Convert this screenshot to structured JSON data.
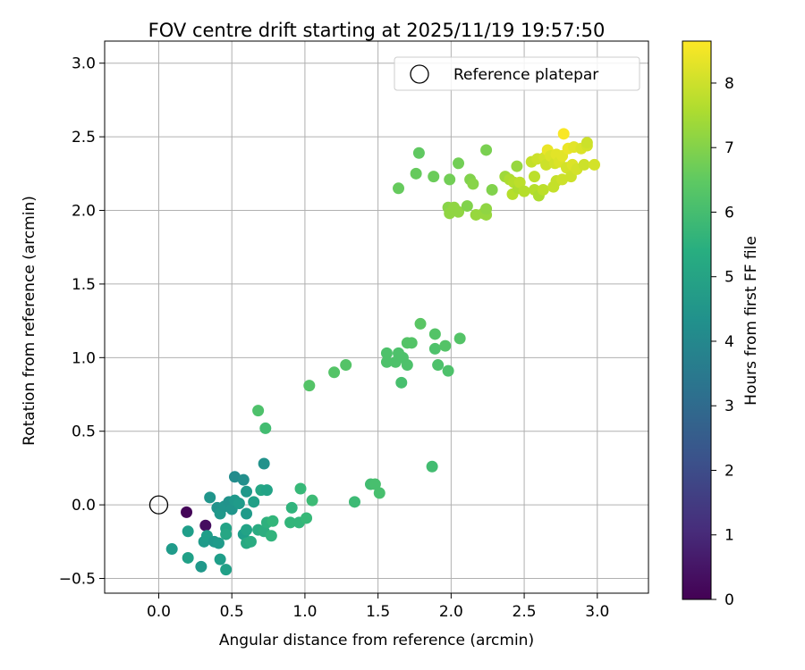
{
  "chart_data": {
    "type": "scatter",
    "title": "FOV centre drift starting at 2025/11/19 19:57:50",
    "xlabel": "Angular distance from reference (arcmin)",
    "ylabel": "Rotation from reference (arcmin)",
    "xlim": [
      -0.37,
      3.35
    ],
    "ylim": [
      -0.6,
      3.15
    ],
    "xticks": [
      "0.0",
      "0.5",
      "1.0",
      "1.5",
      "2.0",
      "2.5",
      "3.0"
    ],
    "yticks": [
      "−0.5",
      "0.0",
      "0.5",
      "1.0",
      "1.5",
      "2.0",
      "2.5",
      "3.0"
    ],
    "grid": true,
    "legend": {
      "location": "top-right",
      "entries": [
        "Reference platepar"
      ]
    },
    "reference_point": {
      "x": 0.0,
      "y": 0.0,
      "label": "Reference platepar"
    },
    "colorbar": {
      "label": "Hours from first FF file",
      "colormap": "viridis",
      "range": [
        0,
        8.65
      ],
      "ticks": [
        "0",
        "1",
        "2",
        "3",
        "4",
        "5",
        "6",
        "7",
        "8"
      ]
    },
    "points": [
      {
        "x": 0.19,
        "y": -0.05,
        "h": 0.1
      },
      {
        "x": 0.32,
        "y": -0.14,
        "h": 0.3
      },
      {
        "x": 0.09,
        "y": -0.3,
        "h": 4.7
      },
      {
        "x": 0.2,
        "y": -0.18,
        "h": 4.8
      },
      {
        "x": 0.2,
        "y": -0.36,
        "h": 4.9
      },
      {
        "x": 0.29,
        "y": -0.42,
        "h": 4.6
      },
      {
        "x": 0.31,
        "y": -0.25,
        "h": 4.7
      },
      {
        "x": 0.33,
        "y": -0.21,
        "h": 4.8
      },
      {
        "x": 0.35,
        "y": 0.05,
        "h": 4.5
      },
      {
        "x": 0.38,
        "y": -0.25,
        "h": 4.6
      },
      {
        "x": 0.4,
        "y": -0.02,
        "h": 4.4
      },
      {
        "x": 0.41,
        "y": -0.26,
        "h": 4.7
      },
      {
        "x": 0.42,
        "y": -0.37,
        "h": 4.8
      },
      {
        "x": 0.42,
        "y": -0.06,
        "h": 4.6
      },
      {
        "x": 0.45,
        "y": -0.01,
        "h": 4.5
      },
      {
        "x": 0.46,
        "y": -0.16,
        "h": 5.0
      },
      {
        "x": 0.46,
        "y": -0.2,
        "h": 5.1
      },
      {
        "x": 0.46,
        "y": -0.44,
        "h": 4.9
      },
      {
        "x": 0.48,
        "y": 0.02,
        "h": 4.4
      },
      {
        "x": 0.5,
        "y": -0.03,
        "h": 4.5
      },
      {
        "x": 0.52,
        "y": 0.19,
        "h": 4.2
      },
      {
        "x": 0.52,
        "y": 0.03,
        "h": 4.6
      },
      {
        "x": 0.55,
        "y": 0.01,
        "h": 4.7
      },
      {
        "x": 0.58,
        "y": 0.17,
        "h": 4.3
      },
      {
        "x": 0.58,
        "y": -0.2,
        "h": 4.8
      },
      {
        "x": 0.6,
        "y": 0.09,
        "h": 4.6
      },
      {
        "x": 0.6,
        "y": -0.06,
        "h": 4.7
      },
      {
        "x": 0.6,
        "y": -0.17,
        "h": 5.0
      },
      {
        "x": 0.6,
        "y": -0.26,
        "h": 5.2
      },
      {
        "x": 0.63,
        "y": -0.25,
        "h": 5.3
      },
      {
        "x": 0.65,
        "y": 0.02,
        "h": 4.9
      },
      {
        "x": 0.68,
        "y": -0.17,
        "h": 5.3
      },
      {
        "x": 0.68,
        "y": 0.64,
        "h": 6.2
      },
      {
        "x": 0.7,
        "y": 0.1,
        "h": 5.1
      },
      {
        "x": 0.72,
        "y": 0.28,
        "h": 4.4
      },
      {
        "x": 0.72,
        "y": -0.18,
        "h": 5.4
      },
      {
        "x": 0.73,
        "y": 0.52,
        "h": 6.0
      },
      {
        "x": 0.74,
        "y": 0.1,
        "h": 5.0
      },
      {
        "x": 0.74,
        "y": -0.12,
        "h": 5.5
      },
      {
        "x": 0.77,
        "y": -0.21,
        "h": 5.6
      },
      {
        "x": 0.78,
        "y": -0.11,
        "h": 5.7
      },
      {
        "x": 0.9,
        "y": -0.12,
        "h": 5.7
      },
      {
        "x": 0.91,
        "y": -0.02,
        "h": 5.6
      },
      {
        "x": 0.96,
        "y": -0.12,
        "h": 5.7
      },
      {
        "x": 0.97,
        "y": 0.11,
        "h": 5.8
      },
      {
        "x": 1.01,
        "y": -0.09,
        "h": 5.8
      },
      {
        "x": 1.05,
        "y": 0.03,
        "h": 5.9
      },
      {
        "x": 1.03,
        "y": 0.81,
        "h": 6.3
      },
      {
        "x": 1.2,
        "y": 0.9,
        "h": 6.3
      },
      {
        "x": 1.28,
        "y": 0.95,
        "h": 6.3
      },
      {
        "x": 1.34,
        "y": 0.02,
        "h": 5.9
      },
      {
        "x": 1.45,
        "y": 0.14,
        "h": 6.0
      },
      {
        "x": 1.48,
        "y": 0.14,
        "h": 6.1
      },
      {
        "x": 1.51,
        "y": 0.08,
        "h": 6.1
      },
      {
        "x": 1.56,
        "y": 1.03,
        "h": 6.2
      },
      {
        "x": 1.56,
        "y": 0.97,
        "h": 6.2
      },
      {
        "x": 1.62,
        "y": 0.97,
        "h": 6.2
      },
      {
        "x": 1.64,
        "y": 1.03,
        "h": 6.2
      },
      {
        "x": 1.66,
        "y": 0.83,
        "h": 6.1
      },
      {
        "x": 1.67,
        "y": 1.0,
        "h": 6.2
      },
      {
        "x": 1.7,
        "y": 0.95,
        "h": 6.2
      },
      {
        "x": 1.7,
        "y": 1.1,
        "h": 6.3
      },
      {
        "x": 1.73,
        "y": 1.1,
        "h": 6.3
      },
      {
        "x": 1.79,
        "y": 1.23,
        "h": 6.4
      },
      {
        "x": 1.87,
        "y": 0.26,
        "h": 6.0
      },
      {
        "x": 1.89,
        "y": 1.16,
        "h": 6.3
      },
      {
        "x": 1.89,
        "y": 1.06,
        "h": 6.2
      },
      {
        "x": 1.91,
        "y": 0.95,
        "h": 6.2
      },
      {
        "x": 1.96,
        "y": 1.08,
        "h": 6.3
      },
      {
        "x": 1.98,
        "y": 0.91,
        "h": 6.2
      },
      {
        "x": 2.06,
        "y": 1.13,
        "h": 6.3
      },
      {
        "x": 1.64,
        "y": 2.15,
        "h": 6.6
      },
      {
        "x": 1.76,
        "y": 2.25,
        "h": 6.6
      },
      {
        "x": 1.78,
        "y": 2.39,
        "h": 6.5
      },
      {
        "x": 1.88,
        "y": 2.23,
        "h": 6.7
      },
      {
        "x": 1.99,
        "y": 2.21,
        "h": 6.8
      },
      {
        "x": 1.98,
        "y": 2.02,
        "h": 7.1
      },
      {
        "x": 1.99,
        "y": 1.98,
        "h": 7.2
      },
      {
        "x": 2.02,
        "y": 2.02,
        "h": 7.2
      },
      {
        "x": 2.05,
        "y": 2.32,
        "h": 6.8
      },
      {
        "x": 2.05,
        "y": 1.99,
        "h": 7.2
      },
      {
        "x": 2.11,
        "y": 2.03,
        "h": 7.0
      },
      {
        "x": 2.13,
        "y": 2.21,
        "h": 7.0
      },
      {
        "x": 2.15,
        "y": 2.18,
        "h": 7.1
      },
      {
        "x": 2.17,
        "y": 1.97,
        "h": 7.3
      },
      {
        "x": 2.22,
        "y": 1.98,
        "h": 7.3
      },
      {
        "x": 2.24,
        "y": 2.41,
        "h": 6.9
      },
      {
        "x": 2.24,
        "y": 1.97,
        "h": 7.3
      },
      {
        "x": 2.24,
        "y": 2.01,
        "h": 7.2
      },
      {
        "x": 2.28,
        "y": 2.14,
        "h": 7.0
      },
      {
        "x": 2.37,
        "y": 2.23,
        "h": 7.4
      },
      {
        "x": 2.4,
        "y": 2.21,
        "h": 7.6
      },
      {
        "x": 2.42,
        "y": 2.11,
        "h": 7.7
      },
      {
        "x": 2.43,
        "y": 2.19,
        "h": 7.7
      },
      {
        "x": 2.45,
        "y": 2.3,
        "h": 7.3
      },
      {
        "x": 2.46,
        "y": 2.15,
        "h": 7.6
      },
      {
        "x": 2.47,
        "y": 2.19,
        "h": 7.8
      },
      {
        "x": 2.5,
        "y": 2.13,
        "h": 7.7
      },
      {
        "x": 2.55,
        "y": 2.33,
        "h": 7.9
      },
      {
        "x": 2.57,
        "y": 2.23,
        "h": 7.8
      },
      {
        "x": 2.57,
        "y": 2.14,
        "h": 7.7
      },
      {
        "x": 2.59,
        "y": 2.35,
        "h": 8.0
      },
      {
        "x": 2.6,
        "y": 2.1,
        "h": 7.6
      },
      {
        "x": 2.63,
        "y": 2.14,
        "h": 7.8
      },
      {
        "x": 2.64,
        "y": 2.36,
        "h": 8.1
      },
      {
        "x": 2.65,
        "y": 2.31,
        "h": 8.0
      },
      {
        "x": 2.66,
        "y": 2.41,
        "h": 8.4
      },
      {
        "x": 2.68,
        "y": 2.37,
        "h": 8.2
      },
      {
        "x": 2.7,
        "y": 2.16,
        "h": 7.9
      },
      {
        "x": 2.71,
        "y": 2.32,
        "h": 8.1
      },
      {
        "x": 2.72,
        "y": 2.2,
        "h": 7.9
      },
      {
        "x": 2.72,
        "y": 2.38,
        "h": 8.3
      },
      {
        "x": 2.74,
        "y": 2.33,
        "h": 8.2
      },
      {
        "x": 2.76,
        "y": 2.21,
        "h": 8.0
      },
      {
        "x": 2.76,
        "y": 2.37,
        "h": 8.3
      },
      {
        "x": 2.77,
        "y": 2.52,
        "h": 8.6
      },
      {
        "x": 2.79,
        "y": 2.29,
        "h": 8.1
      },
      {
        "x": 2.8,
        "y": 2.42,
        "h": 8.4
      },
      {
        "x": 2.82,
        "y": 2.23,
        "h": 8.0
      },
      {
        "x": 2.83,
        "y": 2.31,
        "h": 8.2
      },
      {
        "x": 2.84,
        "y": 2.43,
        "h": 8.3
      },
      {
        "x": 2.86,
        "y": 2.28,
        "h": 8.1
      },
      {
        "x": 2.89,
        "y": 2.42,
        "h": 8.2
      },
      {
        "x": 2.91,
        "y": 2.31,
        "h": 8.0
      },
      {
        "x": 2.93,
        "y": 2.44,
        "h": 8.1
      },
      {
        "x": 2.93,
        "y": 2.46,
        "h": 8.0
      },
      {
        "x": 2.98,
        "y": 2.31,
        "h": 8.1
      }
    ]
  }
}
